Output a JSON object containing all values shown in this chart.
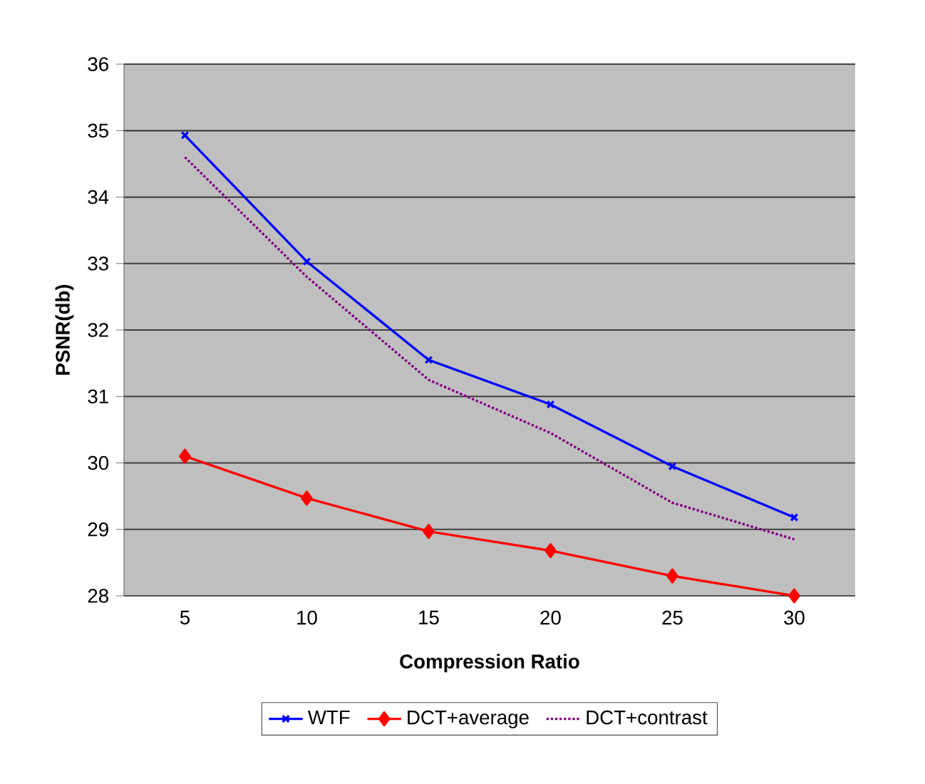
{
  "chart_data": {
    "type": "line",
    "xlabel": "Compression Ratio",
    "ylabel": "PSNR(db)",
    "categories": [
      "5",
      "10",
      "15",
      "20",
      "25",
      "30"
    ],
    "series": [
      {
        "name": "WTF",
        "color": "#0000ff",
        "marker": "cross",
        "line_style": "solid",
        "values": [
          34.93,
          33.03,
          31.55,
          30.88,
          29.95,
          29.18
        ]
      },
      {
        "name": "DCT+average",
        "color": "#ff0000",
        "marker": "diamond",
        "line_style": "solid",
        "values": [
          30.1,
          29.47,
          28.97,
          28.68,
          28.3,
          28.0
        ]
      },
      {
        "name": "DCT+contrast",
        "color": "#800080",
        "marker": "none",
        "line_style": "dotted",
        "values": [
          34.6,
          32.8,
          31.25,
          30.45,
          29.4,
          28.85
        ]
      }
    ],
    "ylim": [
      28,
      36
    ],
    "yticks": [
      28,
      29,
      30,
      31,
      32,
      33,
      34,
      35,
      36
    ],
    "grid": "y",
    "legend": "bottom"
  }
}
